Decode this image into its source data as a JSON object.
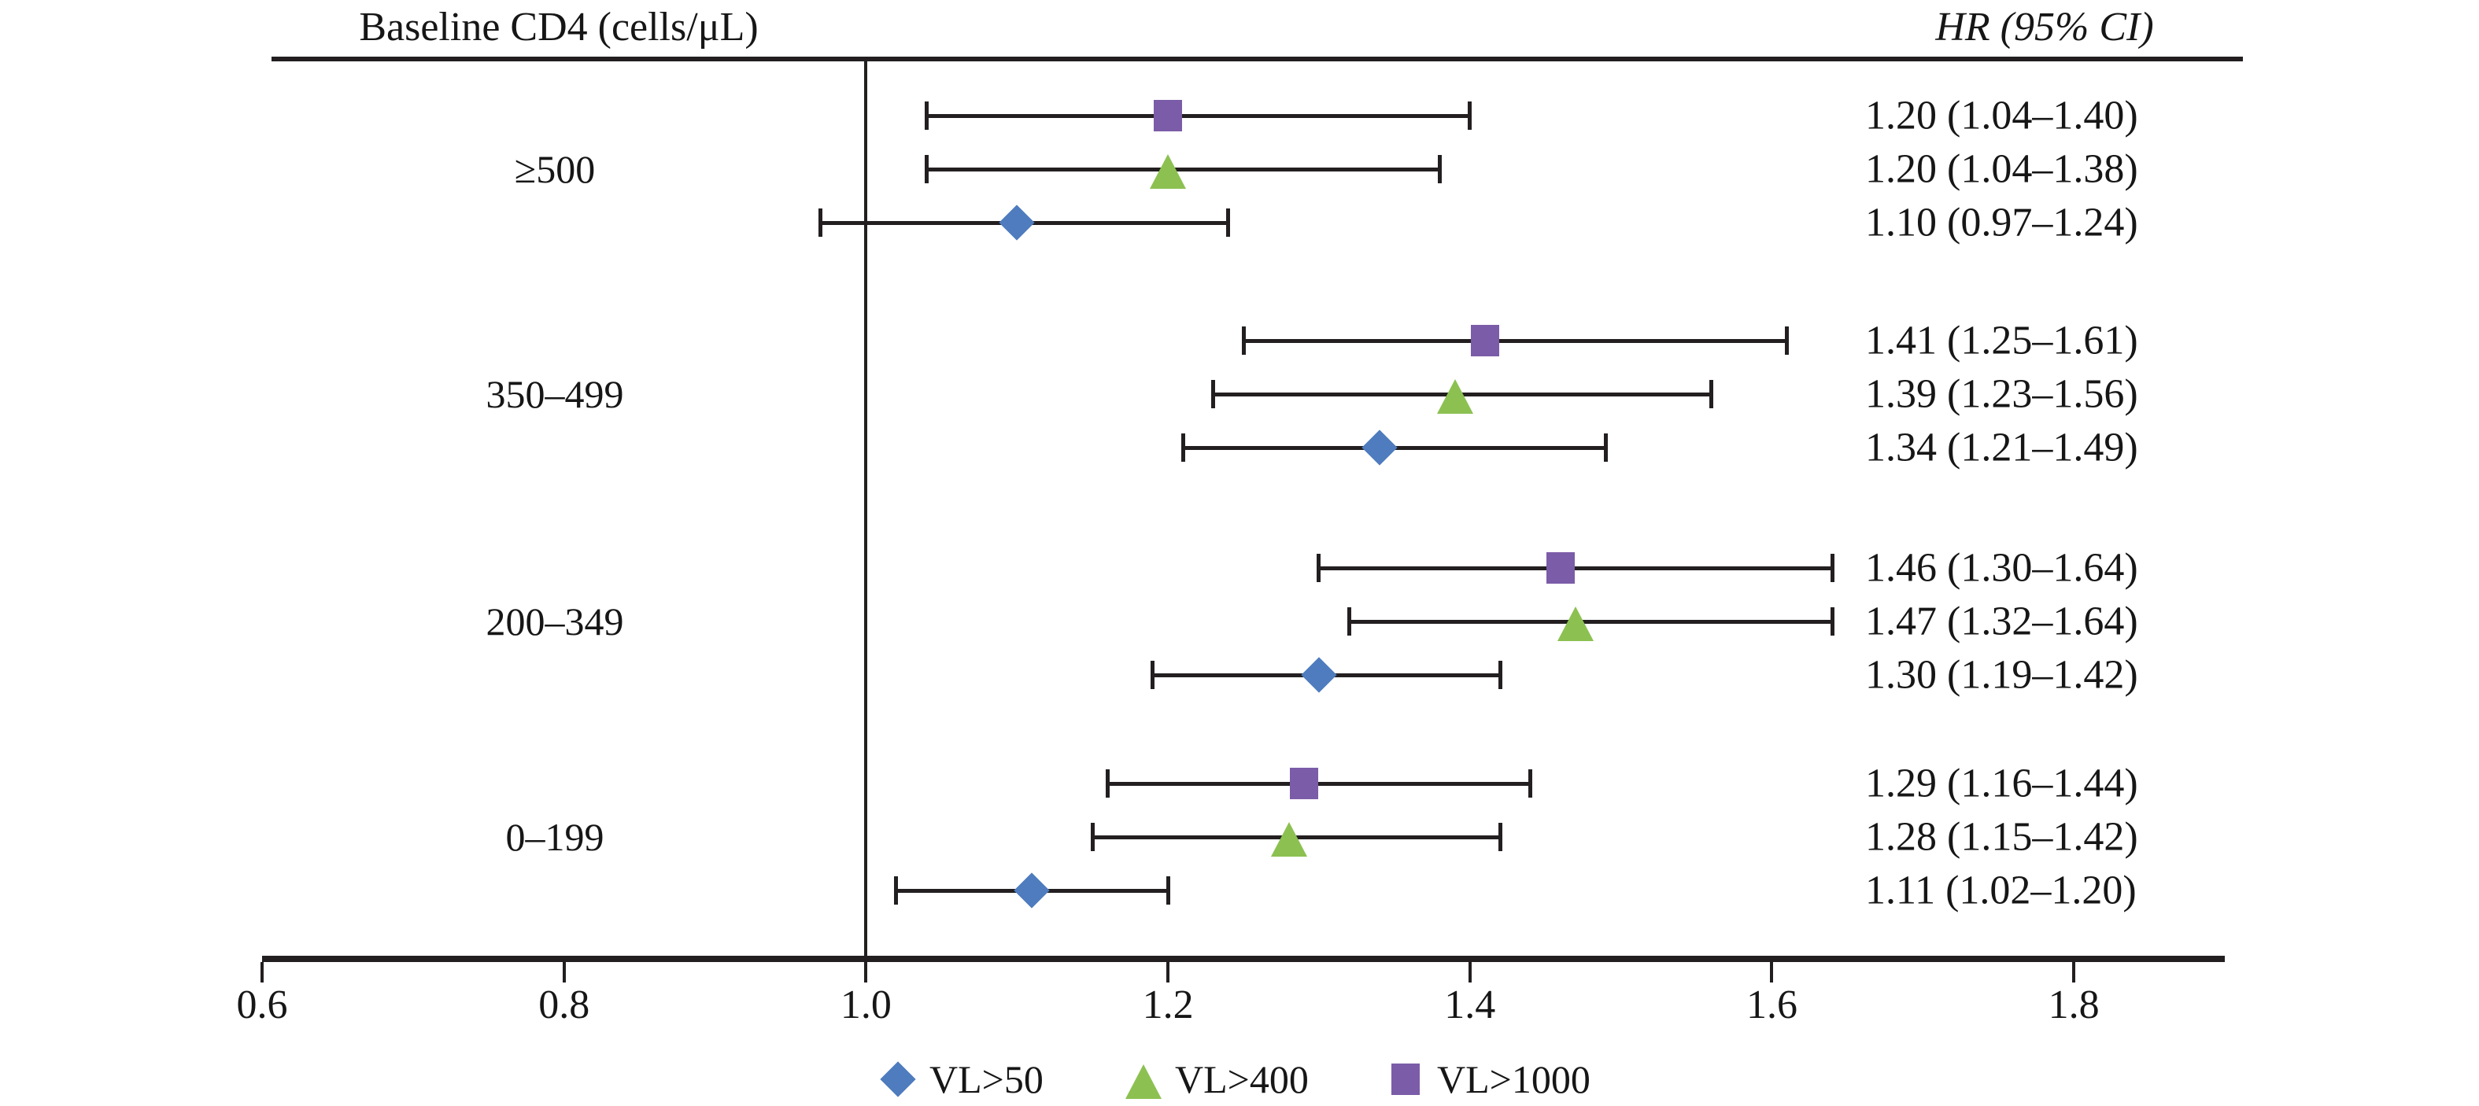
{
  "titles": {
    "left": "Baseline CD4 (cells/μL)",
    "right": "HR (95% CI)"
  },
  "colors": {
    "blue": "#4e7cbe",
    "green": "#8cc152",
    "purple": "#7b5ca8",
    "line": "#231f20"
  },
  "chart_data": {
    "type": "scatter",
    "subtype": "forest-plot",
    "xlim": [
      0.6,
      1.9
    ],
    "x_ticks": [
      "0.6",
      "0.8",
      "1.0",
      "1.2",
      "1.4",
      "1.6",
      "1.8"
    ],
    "x_tick_values": [
      0.6,
      0.8,
      1.0,
      1.2,
      1.4,
      1.6,
      1.8
    ],
    "reference_line": 1.0,
    "grid": false,
    "legend_position": "bottom",
    "series": [
      {
        "name": "VL>50",
        "marker": "diamond",
        "color": "#4e7cbe"
      },
      {
        "name": "VL>400",
        "marker": "triangle",
        "color": "#8cc152"
      },
      {
        "name": "VL>1000",
        "marker": "square",
        "color": "#7b5ca8"
      }
    ],
    "groups": [
      {
        "label": "≥500",
        "rows": [
          {
            "series": "VL>1000",
            "marker": "square",
            "hr": 1.2,
            "lo": 1.04,
            "hi": 1.4,
            "text": "1.20 (1.04–1.40)"
          },
          {
            "series": "VL>400",
            "marker": "triangle",
            "hr": 1.2,
            "lo": 1.04,
            "hi": 1.38,
            "text": "1.20 (1.04–1.38)"
          },
          {
            "series": "VL>50",
            "marker": "diamond",
            "hr": 1.1,
            "lo": 0.97,
            "hi": 1.24,
            "text": "1.10 (0.97–1.24)"
          }
        ]
      },
      {
        "label": "350–499",
        "rows": [
          {
            "series": "VL>1000",
            "marker": "square",
            "hr": 1.41,
            "lo": 1.25,
            "hi": 1.61,
            "text": "1.41 (1.25–1.61)"
          },
          {
            "series": "VL>400",
            "marker": "triangle",
            "hr": 1.39,
            "lo": 1.23,
            "hi": 1.56,
            "text": "1.39 (1.23–1.56)"
          },
          {
            "series": "VL>50",
            "marker": "diamond",
            "hr": 1.34,
            "lo": 1.21,
            "hi": 1.49,
            "text": "1.34 (1.21–1.49)"
          }
        ]
      },
      {
        "label": "200–349",
        "rows": [
          {
            "series": "VL>1000",
            "marker": "square",
            "hr": 1.46,
            "lo": 1.3,
            "hi": 1.64,
            "text": "1.46 (1.30–1.64)"
          },
          {
            "series": "VL>400",
            "marker": "triangle",
            "hr": 1.47,
            "lo": 1.32,
            "hi": 1.64,
            "text": "1.47 (1.32–1.64)"
          },
          {
            "series": "VL>50",
            "marker": "diamond",
            "hr": 1.3,
            "lo": 1.19,
            "hi": 1.42,
            "text": "1.30 (1.19–1.42)"
          }
        ]
      },
      {
        "label": "0–199",
        "rows": [
          {
            "series": "VL>1000",
            "marker": "square",
            "hr": 1.29,
            "lo": 1.16,
            "hi": 1.44,
            "text": "1.29 (1.16–1.44)"
          },
          {
            "series": "VL>400",
            "marker": "triangle",
            "hr": 1.28,
            "lo": 1.15,
            "hi": 1.42,
            "text": "1.28 (1.15–1.42)"
          },
          {
            "series": "VL>50",
            "marker": "diamond",
            "hr": 1.11,
            "lo": 1.02,
            "hi": 1.2,
            "text": "1.11 (1.02–1.20)"
          }
        ]
      }
    ]
  },
  "legend": [
    {
      "label": "VL>50",
      "marker": "diamond",
      "color": "#4e7cbe"
    },
    {
      "label": "VL>400",
      "marker": "triangle",
      "color": "#8cc152"
    },
    {
      "label": "VL>1000",
      "marker": "square",
      "color": "#7b5ca8"
    }
  ]
}
